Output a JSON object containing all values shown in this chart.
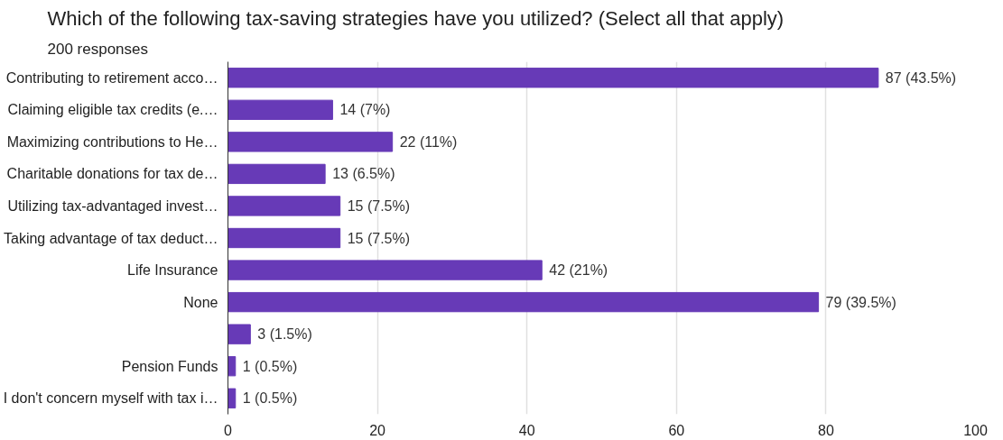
{
  "chart_data": {
    "type": "bar",
    "orientation": "horizontal",
    "title": "Which of the following tax-saving strategies have you utilized? (Select all that apply)",
    "subtitle": "200 responses",
    "categories": [
      "Contributing to retirement acco…",
      "Claiming eligible tax credits (e.…",
      "Maximizing contributions to He…",
      "Charitable donations for tax de…",
      "Utilizing tax-advantaged invest…",
      "Taking advantage of tax deduct…",
      "Life Insurance",
      "None",
      null,
      "Pension Funds",
      "I don't concern myself with tax i…"
    ],
    "values": [
      87,
      14,
      22,
      13,
      15,
      15,
      42,
      79,
      3,
      1,
      1
    ],
    "value_labels": [
      "87 (43.5%)",
      "14 (7%)",
      "22 (11%)",
      "13 (6.5%)",
      "15 (7.5%)",
      "15 (7.5%)",
      "42 (21%)",
      "79 (39.5%)",
      "3 (1.5%)",
      "1 (0.5%)",
      "1 (0.5%)"
    ],
    "color": "#673ab7",
    "xlim": [
      0,
      100
    ],
    "xticks": [
      0,
      20,
      40,
      60,
      80,
      100
    ],
    "grid": "x"
  }
}
